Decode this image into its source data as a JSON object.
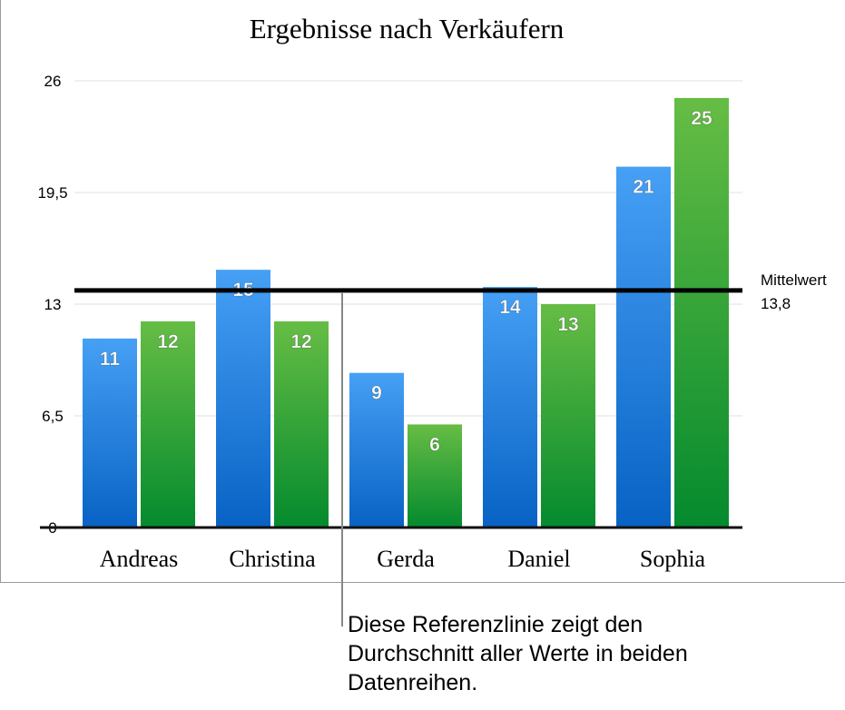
{
  "chart_data": {
    "type": "bar",
    "title": "Ergebnisse nach Verkäufern",
    "categories": [
      "Andreas",
      "Christina",
      "Gerda",
      "Daniel",
      "Sophia"
    ],
    "series": [
      {
        "values": [
          11,
          15,
          9,
          14,
          21
        ],
        "color": "#2f86e6"
      },
      {
        "values": [
          12,
          12,
          6,
          13,
          25
        ],
        "color": "#3a9e3a"
      }
    ],
    "ylim": [
      0,
      26
    ],
    "yticks": [
      "0",
      "6,5",
      "13",
      "19,5",
      "26"
    ],
    "ytick_values": [
      0,
      6.5,
      13,
      19.5,
      26
    ],
    "grid": true,
    "reference_line": {
      "label": "Mittelwert",
      "value": 13.8,
      "value_label": "13,8"
    },
    "annotation": "Diese Referenzlinie zeigt den Durchschnitt aller Werte in beiden Datenreihen."
  }
}
